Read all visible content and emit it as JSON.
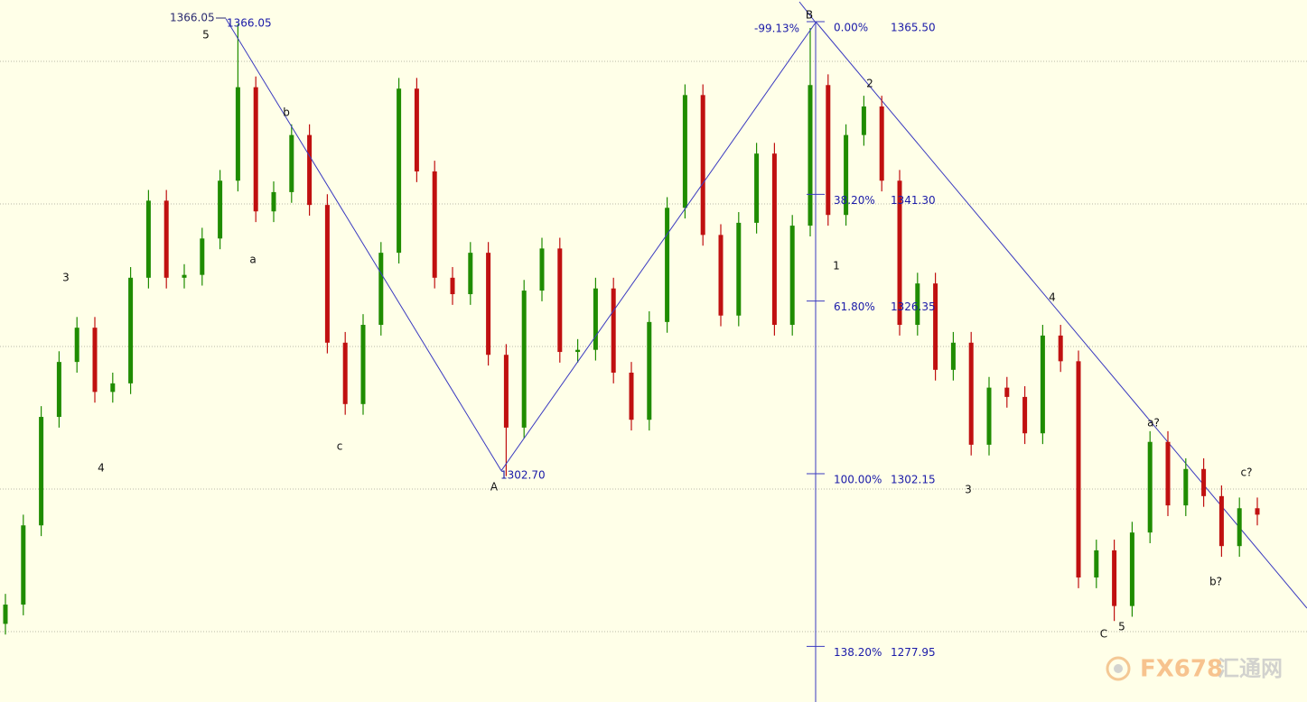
{
  "chart_data": {
    "type": "candlestick",
    "ylim": [
      1271.05,
      1369.42
    ],
    "up_color": "#1f8c00",
    "down_color": "#c01010",
    "ohlc": [
      [
        1282.0,
        1286.2,
        1280.5,
        1284.7
      ],
      [
        1284.7,
        1297.3,
        1283.2,
        1295.8
      ],
      [
        1295.8,
        1312.5,
        1294.3,
        1311.0
      ],
      [
        1311.0,
        1320.2,
        1309.5,
        1318.7
      ],
      [
        1318.7,
        1325.0,
        1317.2,
        1323.5
      ],
      [
        1323.5,
        1325.0,
        1313.0,
        1314.5
      ],
      [
        1314.5,
        1317.2,
        1313.0,
        1315.7
      ],
      [
        1315.7,
        1332.0,
        1314.2,
        1330.5
      ],
      [
        1330.5,
        1342.8,
        1329.0,
        1341.3
      ],
      [
        1341.3,
        1342.8,
        1329.0,
        1330.5
      ],
      [
        1330.5,
        1332.4,
        1329.0,
        1330.9
      ],
      [
        1330.9,
        1337.5,
        1329.4,
        1336.0
      ],
      [
        1336.0,
        1345.6,
        1334.5,
        1344.1
      ],
      [
        1344.1,
        1366.05,
        1342.6,
        1357.2
      ],
      [
        1357.2,
        1358.7,
        1338.3,
        1339.8
      ],
      [
        1339.8,
        1344.0,
        1338.3,
        1342.5
      ],
      [
        1342.5,
        1352.0,
        1341.0,
        1350.5
      ],
      [
        1350.5,
        1352.0,
        1339.2,
        1340.7
      ],
      [
        1340.7,
        1342.2,
        1319.9,
        1321.4
      ],
      [
        1321.4,
        1322.9,
        1311.3,
        1312.8
      ],
      [
        1312.8,
        1325.4,
        1311.3,
        1323.9
      ],
      [
        1323.9,
        1335.5,
        1322.4,
        1334.0
      ],
      [
        1334.0,
        1358.5,
        1332.5,
        1357.0
      ],
      [
        1357.0,
        1358.5,
        1343.9,
        1345.4
      ],
      [
        1345.4,
        1346.9,
        1329.0,
        1330.5
      ],
      [
        1330.5,
        1332.0,
        1326.7,
        1328.2
      ],
      [
        1328.2,
        1335.5,
        1326.7,
        1334.0
      ],
      [
        1334.0,
        1335.5,
        1318.2,
        1319.7
      ],
      [
        1319.7,
        1321.2,
        1302.7,
        1309.5
      ],
      [
        1309.5,
        1330.2,
        1308.0,
        1328.7
      ],
      [
        1328.7,
        1336.1,
        1327.2,
        1334.6
      ],
      [
        1334.6,
        1336.1,
        1318.6,
        1320.1
      ],
      [
        1320.1,
        1321.9,
        1318.6,
        1320.4
      ],
      [
        1320.4,
        1330.5,
        1318.9,
        1329.0
      ],
      [
        1329.0,
        1330.5,
        1315.7,
        1317.2
      ],
      [
        1317.2,
        1318.7,
        1309.1,
        1310.6
      ],
      [
        1310.6,
        1325.8,
        1309.1,
        1324.3
      ],
      [
        1324.3,
        1341.8,
        1322.8,
        1340.3
      ],
      [
        1340.3,
        1357.6,
        1338.8,
        1356.1
      ],
      [
        1356.1,
        1357.6,
        1335.0,
        1336.5
      ],
      [
        1336.5,
        1338.0,
        1323.7,
        1325.2
      ],
      [
        1325.2,
        1339.7,
        1323.7,
        1338.2
      ],
      [
        1338.2,
        1349.4,
        1336.7,
        1347.9
      ],
      [
        1347.9,
        1349.4,
        1322.4,
        1323.9
      ],
      [
        1323.9,
        1339.3,
        1322.4,
        1337.8
      ],
      [
        1337.8,
        1365.5,
        1336.3,
        1357.5
      ],
      [
        1357.5,
        1359.0,
        1337.8,
        1339.3
      ],
      [
        1339.3,
        1352.0,
        1337.8,
        1350.5
      ],
      [
        1350.5,
        1356.0,
        1349.0,
        1354.5
      ],
      [
        1354.5,
        1356.0,
        1342.6,
        1344.1
      ],
      [
        1344.1,
        1345.6,
        1322.4,
        1323.9
      ],
      [
        1323.9,
        1331.2,
        1322.4,
        1329.7
      ],
      [
        1329.7,
        1331.2,
        1316.1,
        1317.6
      ],
      [
        1317.6,
        1322.9,
        1316.1,
        1321.4
      ],
      [
        1321.4,
        1322.9,
        1305.6,
        1307.1
      ],
      [
        1307.1,
        1316.6,
        1305.6,
        1315.1
      ],
      [
        1315.1,
        1316.6,
        1312.3,
        1313.8
      ],
      [
        1313.8,
        1315.3,
        1307.2,
        1308.7
      ],
      [
        1308.7,
        1323.9,
        1307.2,
        1322.4
      ],
      [
        1322.4,
        1323.9,
        1317.3,
        1318.8
      ],
      [
        1318.8,
        1320.3,
        1287.0,
        1288.5
      ],
      [
        1288.5,
        1293.8,
        1287.0,
        1292.3
      ],
      [
        1292.3,
        1293.8,
        1282.4,
        1284.5
      ],
      [
        1284.5,
        1296.3,
        1283.0,
        1294.8
      ],
      [
        1294.8,
        1309.0,
        1293.3,
        1307.5
      ],
      [
        1307.5,
        1309.0,
        1297.1,
        1298.6
      ],
      [
        1298.6,
        1305.2,
        1297.1,
        1303.7
      ],
      [
        1303.7,
        1305.2,
        1298.4,
        1299.9
      ],
      [
        1299.9,
        1301.4,
        1291.4,
        1292.9
      ],
      [
        1292.9,
        1299.7,
        1291.4,
        1298.2
      ],
      [
        1298.2,
        1299.7,
        1295.8,
        1297.3
      ]
    ],
    "wave_labels": [
      "5",
      "3",
      "4",
      "a",
      "b",
      "c",
      "A",
      "B",
      "1",
      "2",
      "3",
      "4",
      "5",
      "C",
      "a?",
      "b?",
      "c?"
    ],
    "price_marker": {
      "value": 1366.05,
      "label": "1366.05"
    },
    "pivots": [
      {
        "value": 1366.05,
        "label": "1366.05"
      },
      {
        "value": 1302.7,
        "label": "1302.70"
      }
    ],
    "retracement": {
      "value": -99.13,
      "label": "-99.13%"
    },
    "fibonacci": [
      {
        "ratio": {
          "value": 0,
          "label": "0.00%"
        },
        "price": {
          "value": 1365.5,
          "label": "1365.50"
        }
      },
      {
        "ratio": {
          "value": 38.2,
          "label": "38.20%"
        },
        "price": {
          "value": 1341.3,
          "label": "1341.30"
        }
      },
      {
        "ratio": {
          "value": 61.8,
          "label": "61.80%"
        },
        "price": {
          "value": 1326.35,
          "label": "1326.35"
        }
      },
      {
        "ratio": {
          "value": 100,
          "label": "100.00%"
        },
        "price": {
          "value": 1302.15,
          "label": "1302.15"
        }
      },
      {
        "ratio": {
          "value": 138.2,
          "label": "138.20%"
        },
        "price": {
          "value": 1277.95,
          "label": "1277.95"
        }
      }
    ],
    "watermark": {
      "brand": "FX678",
      "name": "汇通网"
    }
  }
}
